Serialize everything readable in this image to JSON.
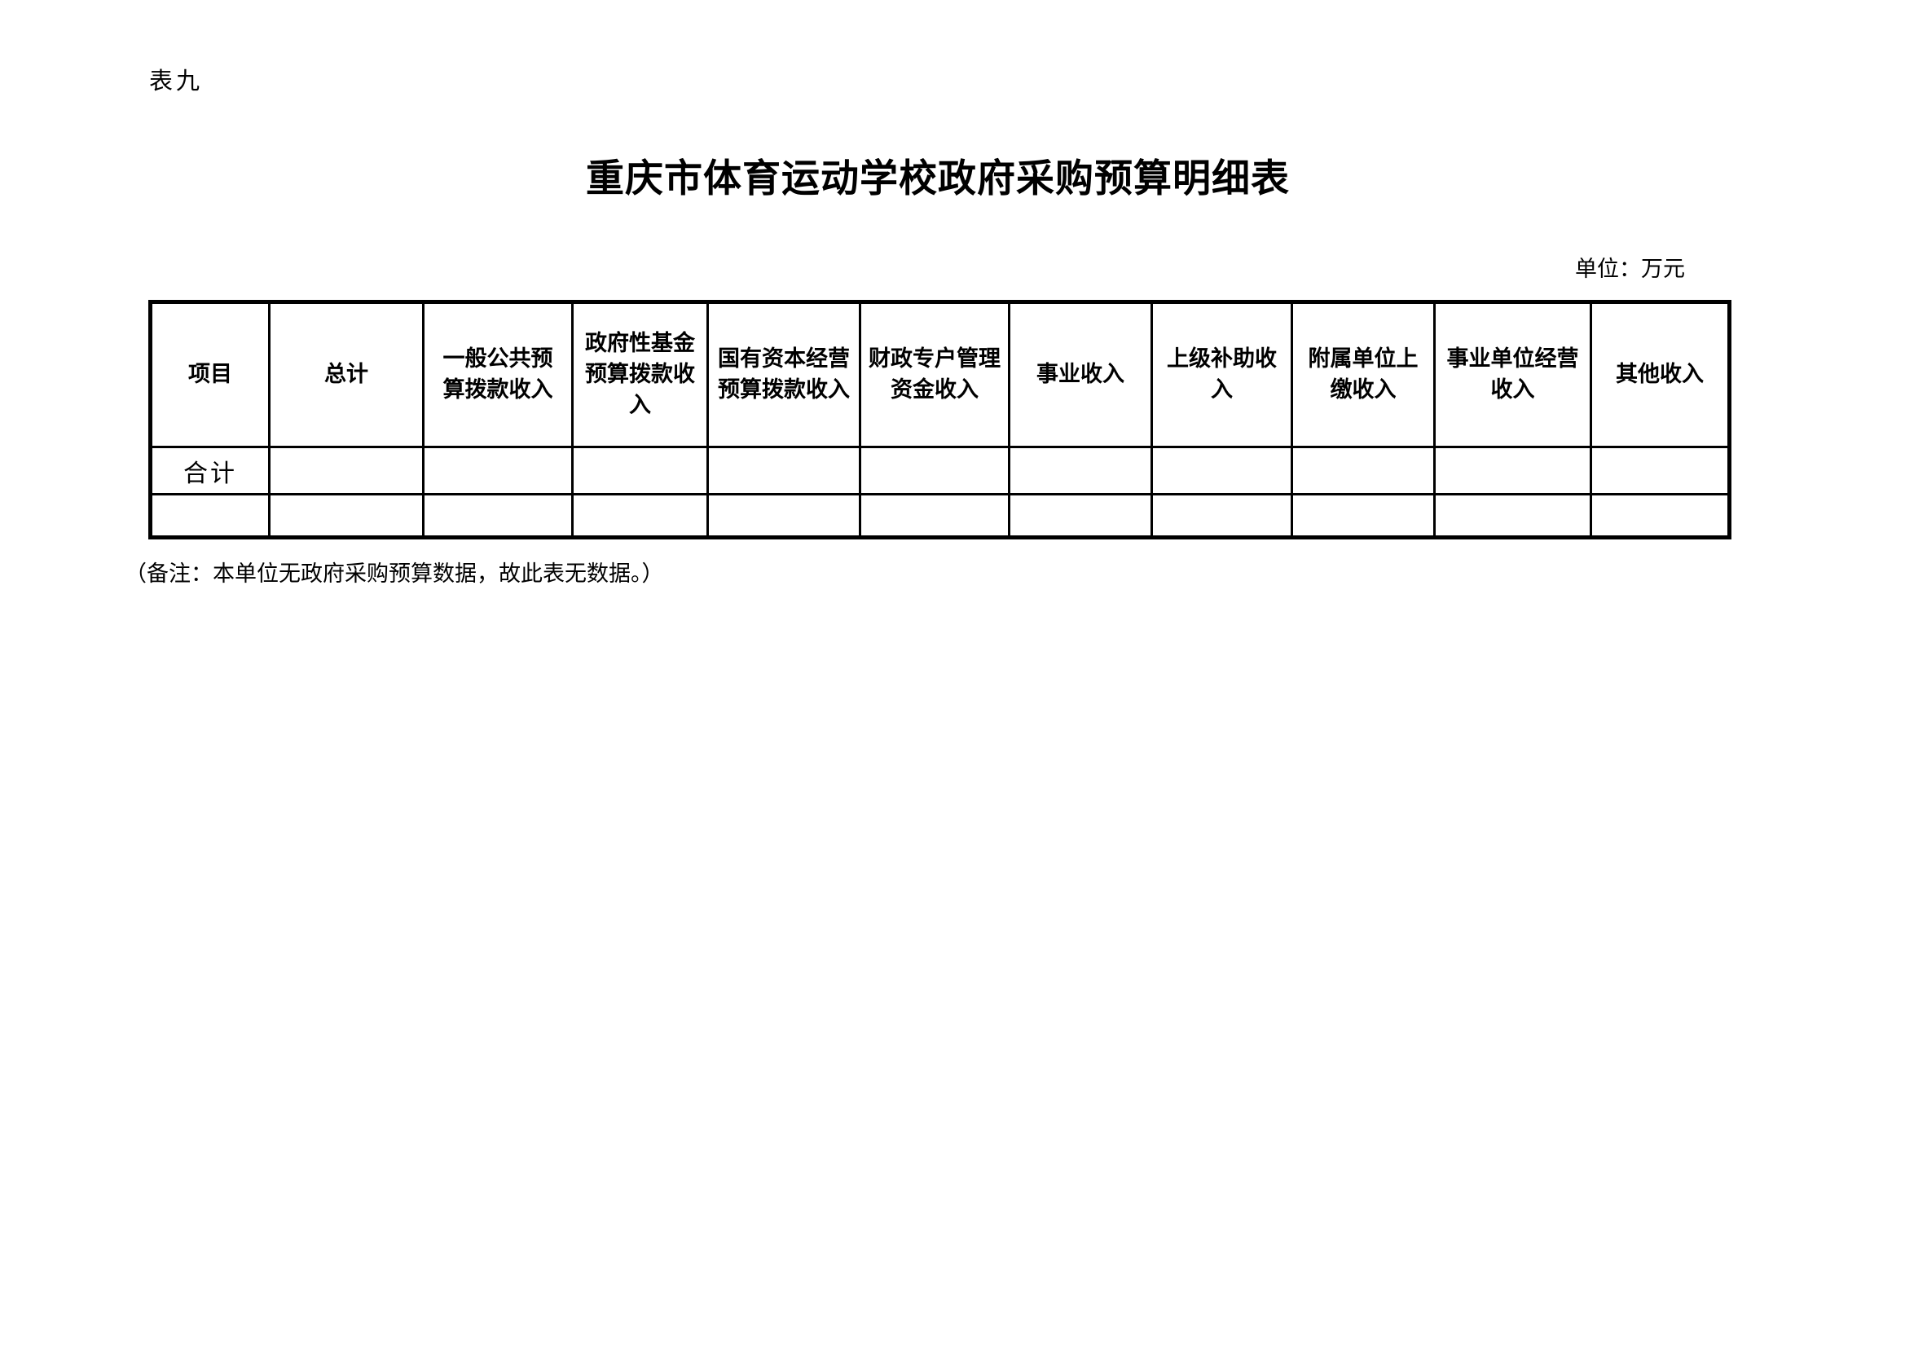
{
  "page": {
    "table_label": "表九",
    "title": "重庆市体育运动学校政府采购预算明细表",
    "unit_note": "单位：万元",
    "footnote": "（备注：本单位无政府采购预算数据，故此表无数据。）"
  },
  "table": {
    "columns": [
      "项目",
      "总计",
      "一般公共预\n算拨款收入",
      "政府性基金\n预算拨款收\n入",
      "国有资本经营\n预算拨款收入",
      "财政专户管理\n资金收入",
      "事业收入",
      "上级补助收\n入",
      "附属单位上\n缴收入",
      "事业单位经营\n收入",
      "其他收入"
    ],
    "rows": [
      {
        "label": "合计",
        "values": [
          "",
          "",
          "",
          "",
          "",
          "",
          "",
          "",
          "",
          ""
        ]
      },
      {
        "label": "",
        "values": [
          "",
          "",
          "",
          "",
          "",
          "",
          "",
          "",
          "",
          ""
        ]
      }
    ]
  }
}
